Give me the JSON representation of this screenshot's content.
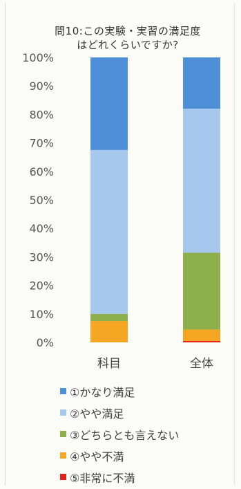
{
  "chart_data": {
    "type": "bar",
    "stacked": true,
    "title": [
      "問10:この実験・実習の満足度",
      "はどれくらいですか?"
    ],
    "categories": [
      "科目",
      "全体"
    ],
    "yticks": [
      "0%",
      "10%",
      "20%",
      "30%",
      "40%",
      "50%",
      "60%",
      "70%",
      "80%",
      "90%",
      "100%"
    ],
    "ylim": [
      0,
      100
    ],
    "grid": false,
    "legend_position": "bottom",
    "series": [
      {
        "name": "⑤非常に不満",
        "color": "#e2231a",
        "values": [
          0,
          0.5
        ]
      },
      {
        "name": "④やや不満",
        "color": "#f5a623",
        "values": [
          7.5,
          4
        ]
      },
      {
        "name": "③どちらとも言えない",
        "color": "#8db04c",
        "values": [
          2.5,
          27
        ]
      },
      {
        "name": "②やや満足",
        "color": "#a6c8ec",
        "values": [
          57.5,
          50.5
        ]
      },
      {
        "name": "①かなり満足",
        "color": "#4e8fd8",
        "values": [
          32.5,
          18
        ]
      }
    ],
    "legend_order": [
      4,
      3,
      2,
      1,
      0
    ]
  }
}
